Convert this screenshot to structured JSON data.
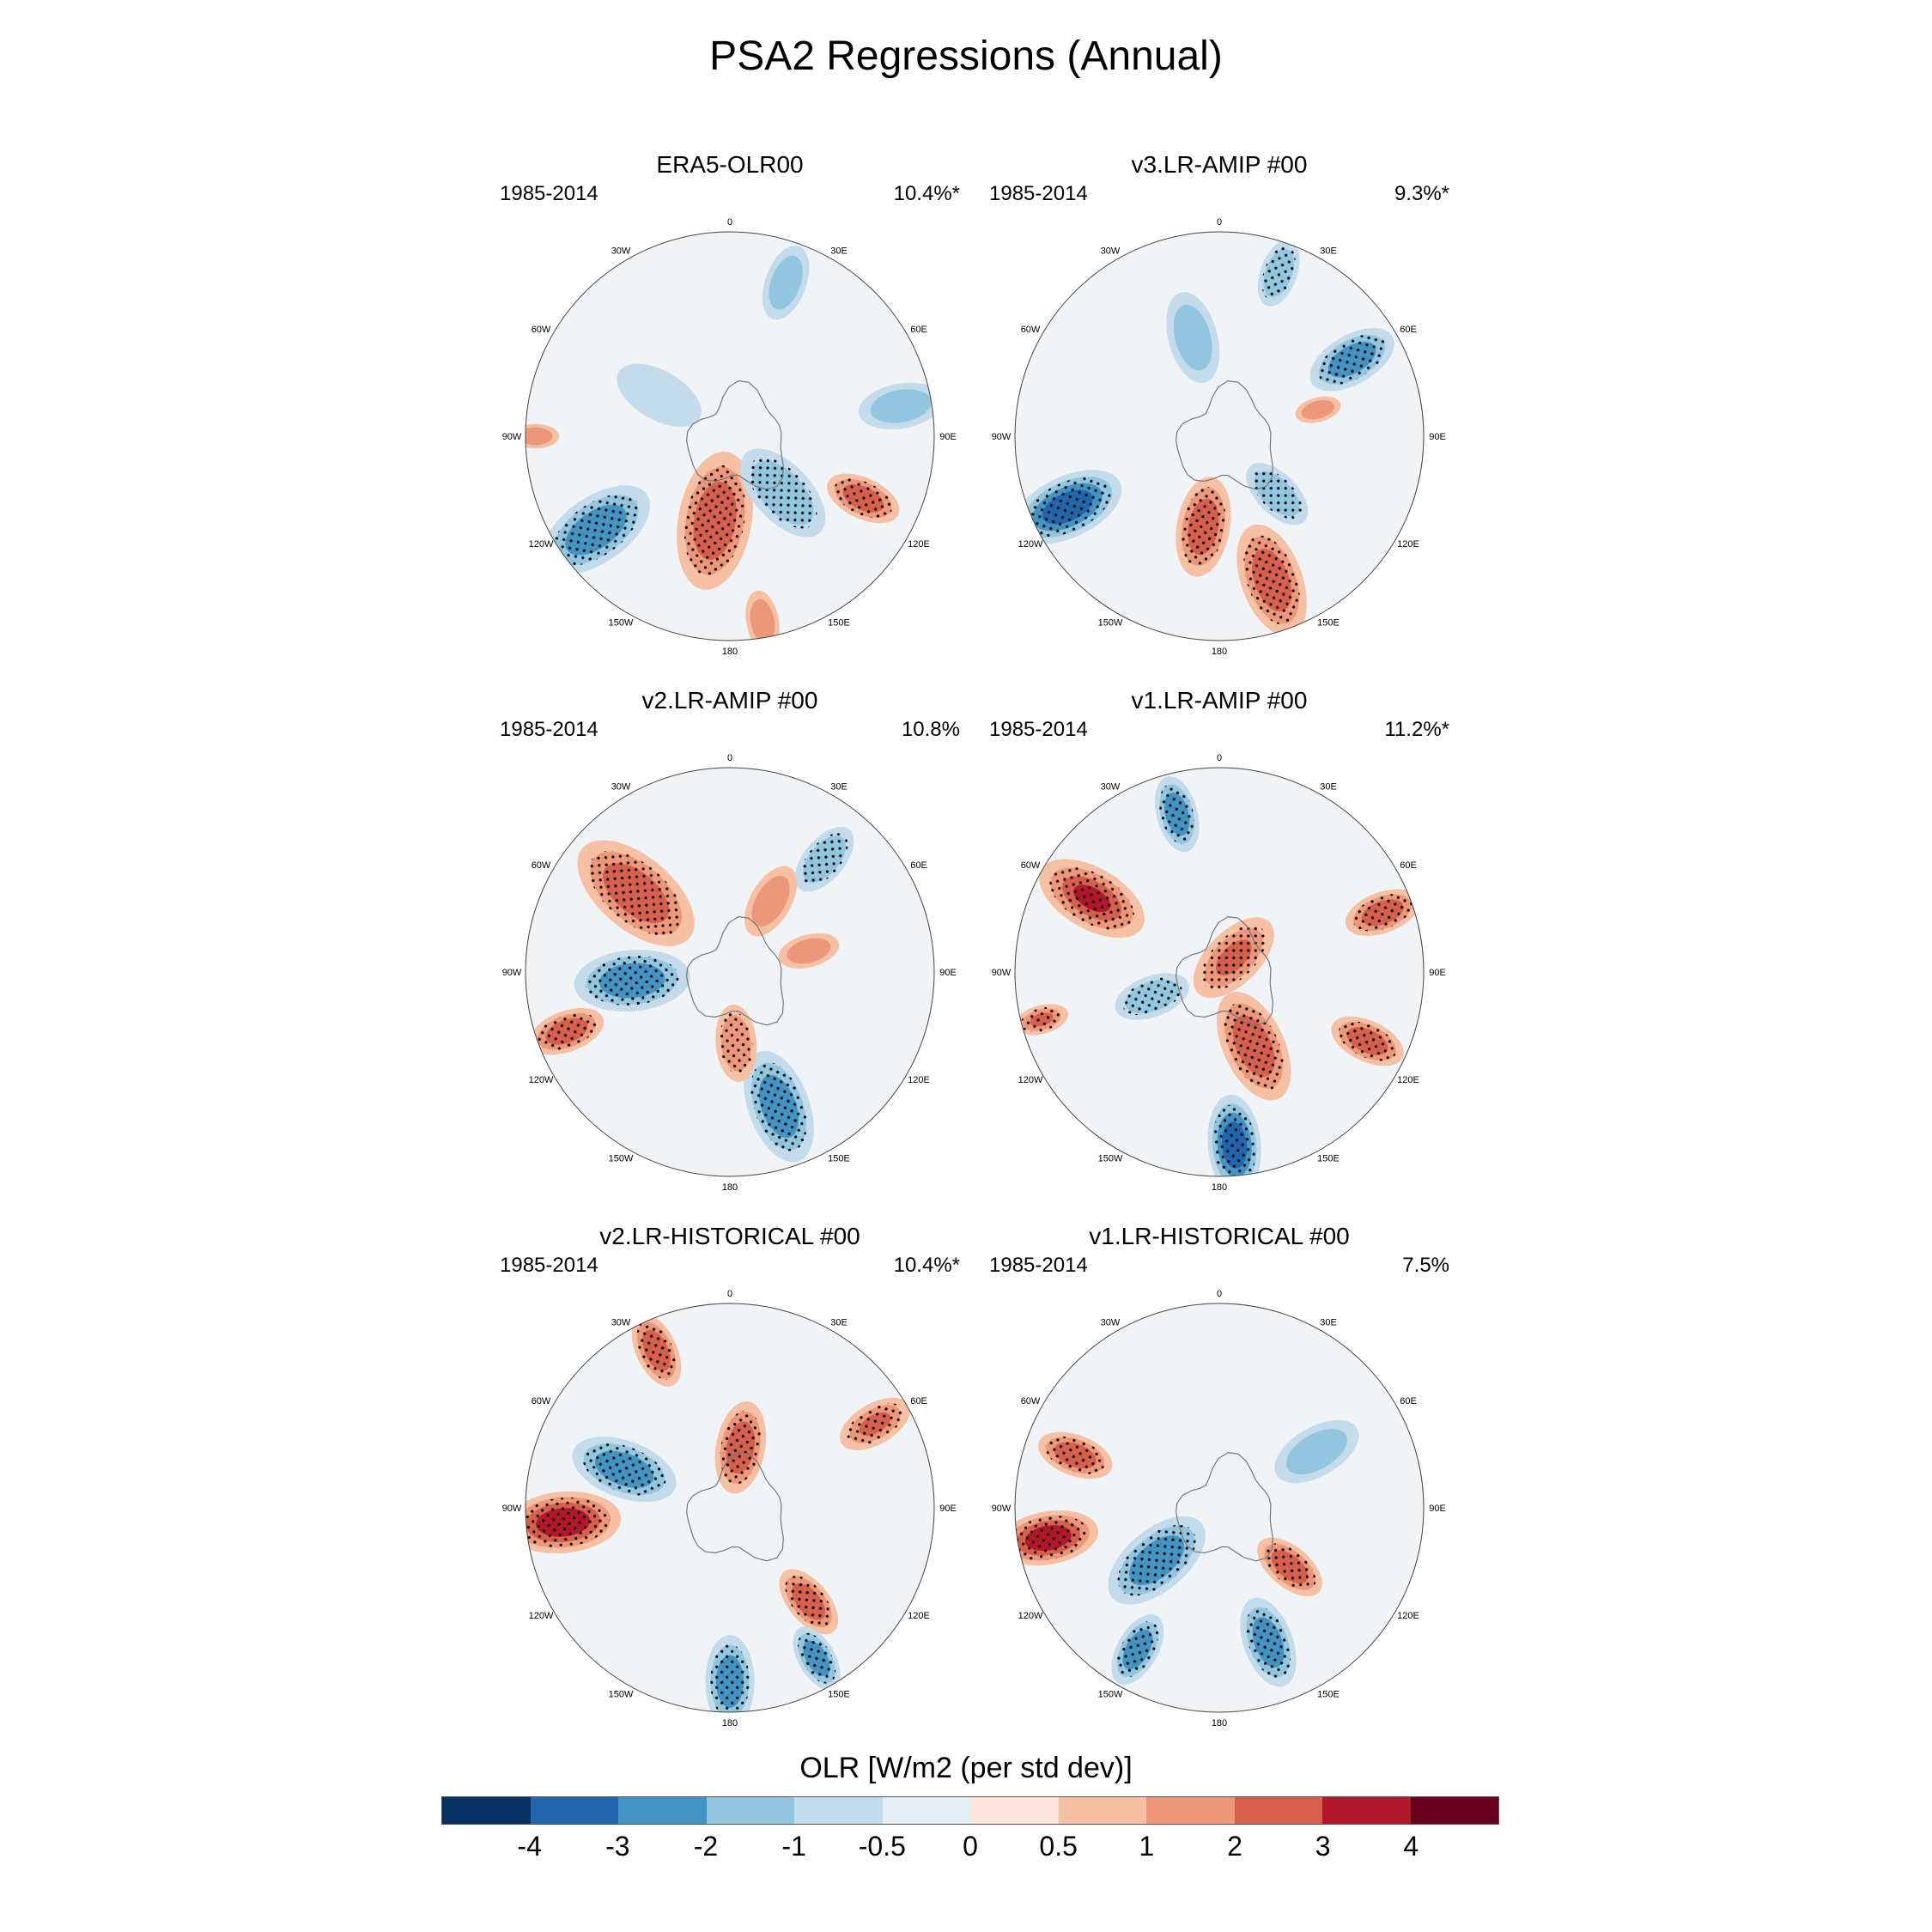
{
  "title": "PSA2 Regressions (Annual)",
  "lon_labels": [
    "0",
    "30E",
    "60E",
    "90E",
    "120E",
    "150E",
    "180",
    "150W",
    "120W",
    "90W",
    "60W",
    "30W"
  ],
  "panels": [
    {
      "title": "ERA5-OLR00",
      "years": "1985-2014",
      "percent": "10.4%*",
      "anomalies": [
        {
          "lon": 190,
          "r": 0.42,
          "v": 2.5,
          "s": 0.18,
          "l": 0.5
        },
        {
          "lon": 137,
          "r": 0.38,
          "v": -1.8,
          "s": 0.14,
          "l": 0.35
        },
        {
          "lon": 115,
          "r": 0.72,
          "v": 2.2,
          "s": 0.1,
          "l": 0.2
        },
        {
          "lon": 235,
          "r": 0.8,
          "v": -2.6,
          "s": 0.16,
          "l": 0.45
        },
        {
          "lon": 20,
          "r": 0.8,
          "v": -1.7,
          "s": 0.1,
          "l": 0.5
        },
        {
          "lon": 80,
          "r": 0.85,
          "v": -1.4,
          "s": 0.11,
          "l": 0.45
        },
        {
          "lon": 300,
          "r": 0.4,
          "v": -1.0,
          "s": 0.12,
          "l": 0.3
        },
        {
          "lon": 170,
          "r": 0.92,
          "v": 1.5,
          "s": 0.08,
          "l": 0.7
        },
        {
          "lon": 270,
          "r": 0.95,
          "v": 1.5,
          "s": 0.06,
          "l": 0.2
        }
      ]
    },
    {
      "title": "v3.LR-AMIP  #00",
      "years": "1985-2014",
      "percent": "9.3%*",
      "anomalies": [
        {
          "lon": 245,
          "r": 0.82,
          "v": -3.2,
          "s": 0.15,
          "l": 0.9
        },
        {
          "lon": 160,
          "r": 0.75,
          "v": 2.8,
          "s": 0.15,
          "l": 0.6
        },
        {
          "lon": 190,
          "r": 0.45,
          "v": 2.5,
          "s": 0.13,
          "l": 0.35
        },
        {
          "lon": 60,
          "r": 0.75,
          "v": -2.5,
          "s": 0.12,
          "l": 0.3
        },
        {
          "lon": 20,
          "r": 0.85,
          "v": -1.8,
          "s": 0.09,
          "l": 0.3
        },
        {
          "lon": 345,
          "r": 0.5,
          "v": -1.5,
          "s": 0.12,
          "l": 0.4
        },
        {
          "lon": 135,
          "r": 0.4,
          "v": -1.8,
          "s": 0.1,
          "l": 0.3
        },
        {
          "lon": 75,
          "r": 0.5,
          "v": 1.5,
          "s": 0.06,
          "l": 0.4
        }
      ]
    },
    {
      "title": "v2.LR-AMIP  #00",
      "years": "1985-2014",
      "percent": "10.8%",
      "anomalies": [
        {
          "lon": 310,
          "r": 0.6,
          "v": 2.8,
          "s": 0.18,
          "l": 0.7
        },
        {
          "lon": 265,
          "r": 0.48,
          "v": -2.6,
          "s": 0.15,
          "l": 0.2
        },
        {
          "lon": 160,
          "r": 0.7,
          "v": -2.6,
          "s": 0.15,
          "l": 0.6
        },
        {
          "lon": 250,
          "r": 0.85,
          "v": 2.3,
          "s": 0.1,
          "l": 0.4
        },
        {
          "lon": 40,
          "r": 0.72,
          "v": -1.8,
          "s": 0.1,
          "l": 0.3
        },
        {
          "lon": 75,
          "r": 0.4,
          "v": 1.5,
          "s": 0.08,
          "l": 0.3
        },
        {
          "lon": 30,
          "r": 0.4,
          "v": 1.5,
          "s": 0.1,
          "l": 0.2
        },
        {
          "lon": 175,
          "r": 0.35,
          "v": 1.8,
          "s": 0.1,
          "l": 0.3
        }
      ]
    },
    {
      "title": "v1.LR-AMIP  #00",
      "years": "1985-2014",
      "percent": "11.2%*",
      "anomalies": [
        {
          "lon": 300,
          "r": 0.72,
          "v": 3.0,
          "s": 0.15,
          "l": 0.5
        },
        {
          "lon": 175,
          "r": 0.85,
          "v": -3.3,
          "s": 0.13,
          "l": 0.9
        },
        {
          "lon": 155,
          "r": 0.4,
          "v": 2.6,
          "s": 0.15,
          "l": 0.6
        },
        {
          "lon": 345,
          "r": 0.8,
          "v": -2.3,
          "s": 0.1,
          "l": 0.4
        },
        {
          "lon": 70,
          "r": 0.85,
          "v": 2.4,
          "s": 0.1,
          "l": 0.4
        },
        {
          "lon": 115,
          "r": 0.8,
          "v": 2.8,
          "s": 0.1,
          "l": 0.3
        },
        {
          "lon": 255,
          "r": 0.9,
          "v": 2.0,
          "s": 0.07,
          "l": 0.8
        },
        {
          "lon": 45,
          "r": 0.1,
          "v": 2.0,
          "s": 0.13,
          "l": 0.1
        },
        {
          "lon": 250,
          "r": 0.35,
          "v": -1.8,
          "s": 0.1,
          "l": 0.3
        }
      ]
    },
    {
      "title": "v2.LR-HISTORICAL  #00",
      "years": "1985-2014",
      "percent": "10.4%*",
      "anomalies": [
        {
          "lon": 265,
          "r": 0.82,
          "v": 3.2,
          "s": 0.15,
          "l": 0.3
        },
        {
          "lon": 290,
          "r": 0.55,
          "v": -2.2,
          "s": 0.14,
          "l": 0.6
        },
        {
          "lon": 180,
          "r": 0.85,
          "v": -3.0,
          "s": 0.12,
          "l": 0.9
        },
        {
          "lon": 335,
          "r": 0.85,
          "v": 2.2,
          "s": 0.1,
          "l": 0.3
        },
        {
          "lon": 10,
          "r": 0.3,
          "v": 2.2,
          "s": 0.12,
          "l": 0.5
        },
        {
          "lon": 140,
          "r": 0.6,
          "v": 2.2,
          "s": 0.1,
          "l": 0.3
        },
        {
          "lon": 60,
          "r": 0.82,
          "v": 2.0,
          "s": 0.1,
          "l": 0.5
        },
        {
          "lon": 150,
          "r": 0.85,
          "v": -2.2,
          "s": 0.09,
          "l": 0.3
        }
      ]
    },
    {
      "title": "v1.LR-HISTORICAL  #00",
      "years": "1985-2014",
      "percent": "7.5%",
      "anomalies": [
        {
          "lon": 260,
          "r": 0.85,
          "v": 3.4,
          "s": 0.13,
          "l": 0.3
        },
        {
          "lon": 230,
          "r": 0.4,
          "v": -2.4,
          "s": 0.15,
          "l": 0.6
        },
        {
          "lon": 160,
          "r": 0.7,
          "v": -2.4,
          "s": 0.12,
          "l": 0.7
        },
        {
          "lon": 210,
          "r": 0.8,
          "v": -2.2,
          "s": 0.1,
          "l": 0.4
        },
        {
          "lon": 130,
          "r": 0.45,
          "v": 2.2,
          "s": 0.1,
          "l": 0.4
        },
        {
          "lon": 60,
          "r": 0.55,
          "v": -1.5,
          "s": 0.12,
          "l": 0.4
        },
        {
          "lon": 290,
          "r": 0.75,
          "v": 2.2,
          "s": 0.1,
          "l": 0.3
        }
      ]
    }
  ],
  "colorbar": {
    "title": "OLR [W/m2 (per std dev)]",
    "colors": [
      "#053061",
      "#2166ac",
      "#4393c3",
      "#92c5de",
      "#c3dbeb",
      "#e4eef5",
      "#fbe6de",
      "#f6c0a5",
      "#ed977a",
      "#d6604d",
      "#b2182b",
      "#67001f"
    ],
    "labels": [
      "-4",
      "-3",
      "-2",
      "-1",
      "-0.5",
      "0",
      "0.5",
      "1",
      "2",
      "3",
      "4"
    ]
  }
}
